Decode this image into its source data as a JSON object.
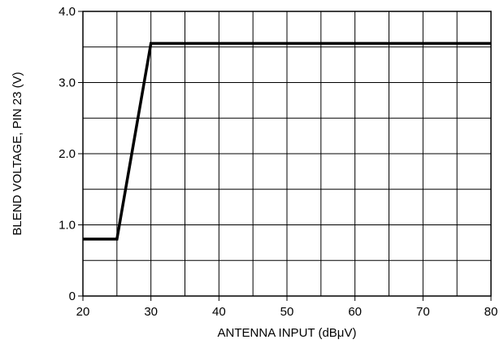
{
  "chart_data": {
    "type": "line",
    "title": "",
    "xlabel": "ANTENNA INPUT (dBμV)",
    "ylabel": "BLEND VOLTAGE, PIN 23 (V)",
    "xlim": [
      20,
      80
    ],
    "ylim": [
      0,
      4.0
    ],
    "x_ticks": [
      20,
      30,
      40,
      50,
      60,
      70,
      80
    ],
    "x_tick_labels": [
      "20",
      "30",
      "40",
      "50",
      "60",
      "70",
      "80"
    ],
    "y_ticks": [
      0,
      1.0,
      2.0,
      3.0,
      4.0
    ],
    "y_tick_labels": [
      "0",
      "1.0",
      "2.0",
      "3.0",
      "4.0"
    ],
    "x_minor_step": 5,
    "y_minor_step": 0.5,
    "grid": true,
    "series": [
      {
        "x": [
          20,
          25,
          30,
          80
        ],
        "y": [
          0.8,
          0.8,
          3.55,
          3.55
        ],
        "color": "#000000"
      }
    ]
  }
}
